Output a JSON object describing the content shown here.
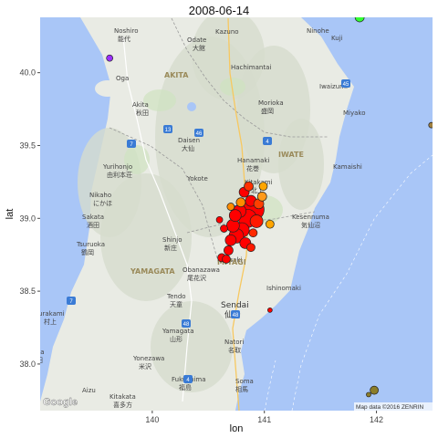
{
  "chart_data": {
    "type": "scatter",
    "title": "2008-06-14",
    "xlabel": "lon",
    "ylabel": "lat",
    "xlim": [
      139.0,
      142.5
    ],
    "ylim": [
      37.68,
      40.38
    ],
    "x_ticks": [
      140,
      141,
      142
    ],
    "y_ticks": [
      38.0,
      38.5,
      39.0,
      39.5,
      40.0
    ],
    "x_tick_labels": [
      "140",
      "141",
      "142"
    ],
    "y_tick_labels": [
      "38.0",
      "38.5",
      "39.0",
      "39.5",
      "40.0"
    ],
    "grid": false,
    "legend": "none",
    "background": "map tiles (Google terrain)",
    "attribution": "Map data ©2016 ZENRIN",
    "basemap_logo": "Google",
    "points": [
      {
        "lon": 140.9,
        "lat": 39.06,
        "size": 22,
        "color": "#ff0000"
      },
      {
        "lon": 140.85,
        "lat": 39.0,
        "size": 18,
        "color": "#ff0000"
      },
      {
        "lon": 140.8,
        "lat": 38.92,
        "size": 14,
        "color": "#ff0000"
      },
      {
        "lon": 140.75,
        "lat": 38.88,
        "size": 14,
        "color": "#ff0000"
      },
      {
        "lon": 140.72,
        "lat": 38.95,
        "size": 12,
        "color": "#ff0000"
      },
      {
        "lon": 140.78,
        "lat": 39.05,
        "size": 12,
        "color": "#ff0000"
      },
      {
        "lon": 140.88,
        "lat": 39.12,
        "size": 10,
        "color": "#ff0000"
      },
      {
        "lon": 140.82,
        "lat": 39.18,
        "size": 9,
        "color": "#ff0000"
      },
      {
        "lon": 140.7,
        "lat": 38.85,
        "size": 10,
        "color": "#ff0000"
      },
      {
        "lon": 140.68,
        "lat": 38.78,
        "size": 8,
        "color": "#ff0000"
      },
      {
        "lon": 140.83,
        "lat": 38.83,
        "size": 10,
        "color": "#ff0000"
      },
      {
        "lon": 140.93,
        "lat": 38.98,
        "size": 12,
        "color": "#ff1a00"
      },
      {
        "lon": 140.62,
        "lat": 38.73,
        "size": 7,
        "color": "#ff0000"
      },
      {
        "lon": 140.66,
        "lat": 38.72,
        "size": 7,
        "color": "#ff0000"
      },
      {
        "lon": 140.74,
        "lat": 39.02,
        "size": 11,
        "color": "#ff0000"
      },
      {
        "lon": 140.95,
        "lat": 39.1,
        "size": 9,
        "color": "#ff4000"
      },
      {
        "lon": 140.86,
        "lat": 39.22,
        "size": 8,
        "color": "#ff3000"
      },
      {
        "lon": 140.79,
        "lat": 39.11,
        "size": 8,
        "color": "#ff8c00"
      },
      {
        "lon": 140.7,
        "lat": 39.08,
        "size": 6,
        "color": "#ff8c00"
      },
      {
        "lon": 140.9,
        "lat": 38.9,
        "size": 7,
        "color": "#ff2a00"
      },
      {
        "lon": 140.98,
        "lat": 39.15,
        "size": 8,
        "color": "#ff9a1a"
      },
      {
        "lon": 140.99,
        "lat": 39.22,
        "size": 7,
        "color": "#ffa500"
      },
      {
        "lon": 141.05,
        "lat": 38.96,
        "size": 7,
        "color": "#ffa500"
      },
      {
        "lon": 140.6,
        "lat": 38.99,
        "size": 5,
        "color": "#ff0000"
      },
      {
        "lon": 140.64,
        "lat": 38.93,
        "size": 6,
        "color": "#ff0000"
      },
      {
        "lon": 140.88,
        "lat": 38.8,
        "size": 7,
        "color": "#ff1a00"
      },
      {
        "lon": 141.05,
        "lat": 38.37,
        "size": 3,
        "color": "#ff0000"
      },
      {
        "lon": 139.62,
        "lat": 40.1,
        "size": 5,
        "color": "#9b30ff"
      },
      {
        "lon": 141.85,
        "lat": 40.38,
        "size": 8,
        "color": "#33ff33"
      },
      {
        "lon": 142.49,
        "lat": 39.64,
        "size": 4,
        "color": "#a08040"
      },
      {
        "lon": 141.98,
        "lat": 37.82,
        "size": 7,
        "color": "#8b7d2a"
      },
      {
        "lon": 141.93,
        "lat": 37.79,
        "size": 3,
        "color": "#8b7d2a"
      }
    ]
  }
}
